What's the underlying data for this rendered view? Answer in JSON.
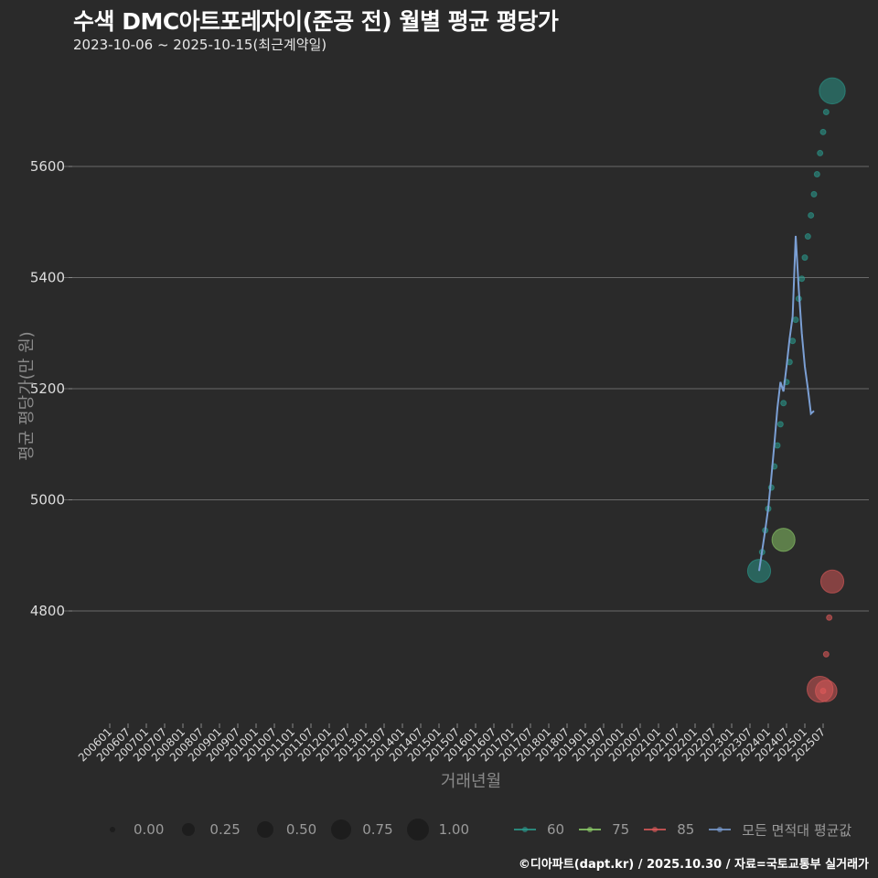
{
  "header": {
    "title": "수색 DMC아트포레자이(준공 전) 월별 평균 평당가",
    "subtitle": "2023-10-06 ~ 2025-10-15(최근계약일)"
  },
  "axes": {
    "ylabel": "평균 평당가(만 원)",
    "xlabel": "거래년월",
    "yticks": [
      "5600",
      "5400",
      "5200",
      "5000",
      "4800"
    ],
    "xticks": [
      "200601",
      "200607",
      "200701",
      "200707",
      "200801",
      "200807",
      "200901",
      "200907",
      "201001",
      "201007",
      "201101",
      "201107",
      "201201",
      "201207",
      "201301",
      "201307",
      "201401",
      "201407",
      "201501",
      "201507",
      "201601",
      "201607",
      "201701",
      "201707",
      "201801",
      "201807",
      "201901",
      "201907",
      "202001",
      "202007",
      "202101",
      "202107",
      "202201",
      "202207",
      "202301",
      "202307",
      "202401",
      "202407",
      "202501",
      "202507"
    ]
  },
  "legend": {
    "size": [
      {
        "label": "0.00"
      },
      {
        "label": "0.25"
      },
      {
        "label": "0.50"
      },
      {
        "label": "0.75"
      },
      {
        "label": "1.00"
      }
    ],
    "series": [
      {
        "label": "60",
        "color": "#2a9d8f"
      },
      {
        "label": "75",
        "color": "#8fd16a"
      },
      {
        "label": "85",
        "color": "#e05a5a"
      },
      {
        "label": "모든 면적대 평균값",
        "color": "#7b9fd4"
      }
    ]
  },
  "caption": "©디아파트(dapt.kr) / 2025.10.30 / 자료=국토교통부 실거래가",
  "chart_data": {
    "type": "scatter",
    "title": "수색 DMC아트포레자이(준공 전) 월별 평균 평당가",
    "subtitle": "2023-10-06 ~ 2025-10-15(최근계약일)",
    "xlabel": "거래년월",
    "ylabel": "평균 평당가(만 원)",
    "ylim": [
      4590,
      5790
    ],
    "xlim": [
      "200601",
      "202510"
    ],
    "grid": true,
    "legend_position": "bottom",
    "series": [
      {
        "name": "60",
        "color": "#2a9d8f",
        "points": [
          {
            "x": "202310",
            "y": 4872,
            "size": 0.6
          },
          {
            "x": "202311",
            "y": 4906,
            "size": 0.05
          },
          {
            "x": "202312",
            "y": 4945,
            "size": 0.05
          },
          {
            "x": "202401",
            "y": 4984,
            "size": 0.05
          },
          {
            "x": "202402",
            "y": 5022,
            "size": 0.05
          },
          {
            "x": "202403",
            "y": 5060,
            "size": 0.05
          },
          {
            "x": "202404",
            "y": 5098,
            "size": 0.05
          },
          {
            "x": "202405",
            "y": 5136,
            "size": 0.05
          },
          {
            "x": "202406",
            "y": 5174,
            "size": 0.05
          },
          {
            "x": "202407",
            "y": 5212,
            "size": 0.05
          },
          {
            "x": "202408",
            "y": 5248,
            "size": 0.05
          },
          {
            "x": "202409",
            "y": 5286,
            "size": 0.05
          },
          {
            "x": "202410",
            "y": 5324,
            "size": 0.05
          },
          {
            "x": "202411",
            "y": 5362,
            "size": 0.05
          },
          {
            "x": "202412",
            "y": 5398,
            "size": 0.05
          },
          {
            "x": "202501",
            "y": 5436,
            "size": 0.05
          },
          {
            "x": "202502",
            "y": 5474,
            "size": 0.05
          },
          {
            "x": "202503",
            "y": 5512,
            "size": 0.05
          },
          {
            "x": "202504",
            "y": 5550,
            "size": 0.05
          },
          {
            "x": "202505",
            "y": 5586,
            "size": 0.05
          },
          {
            "x": "202506",
            "y": 5624,
            "size": 0.05
          },
          {
            "x": "202507",
            "y": 5662,
            "size": 0.05
          },
          {
            "x": "202508",
            "y": 5698,
            "size": 0.05
          },
          {
            "x": "202510",
            "y": 5736,
            "size": 0.7
          }
        ]
      },
      {
        "name": "75",
        "color": "#8fd16a",
        "points": [
          {
            "x": "202406",
            "y": 4928,
            "size": 0.6
          }
        ]
      },
      {
        "name": "85",
        "color": "#e05a5a",
        "points": [
          {
            "x": "202510",
            "y": 4853,
            "size": 0.6
          },
          {
            "x": "202509",
            "y": 4788,
            "size": 0.05
          },
          {
            "x": "202508",
            "y": 4722,
            "size": 0.05
          },
          {
            "x": "202506",
            "y": 4659,
            "size": 0.7
          },
          {
            "x": "202508",
            "y": 4656,
            "size": 0.55
          },
          {
            "x": "202507",
            "y": 4656,
            "size": 0.05
          }
        ]
      },
      {
        "name": "모든 면적대 평균값",
        "color": "#7b9fd4",
        "points": [
          {
            "x": "202310",
            "y": 4872
          },
          {
            "x": "202312",
            "y": 4945
          },
          {
            "x": "202401",
            "y": 4985
          },
          {
            "x": "202402",
            "y": 5040
          },
          {
            "x": "202403",
            "y": 5100
          },
          {
            "x": "202404",
            "y": 5165
          },
          {
            "x": "202405",
            "y": 5212
          },
          {
            "x": "202406",
            "y": 5195
          },
          {
            "x": "202407",
            "y": 5240
          },
          {
            "x": "202408",
            "y": 5290
          },
          {
            "x": "202409",
            "y": 5330
          },
          {
            "x": "202410",
            "y": 5475
          },
          {
            "x": "202411",
            "y": 5380
          },
          {
            "x": "202412",
            "y": 5300
          },
          {
            "x": "202501",
            "y": 5240
          },
          {
            "x": "202502",
            "y": 5200
          },
          {
            "x": "202503",
            "y": 5155
          },
          {
            "x": "202504",
            "y": 5160
          }
        ]
      }
    ]
  }
}
